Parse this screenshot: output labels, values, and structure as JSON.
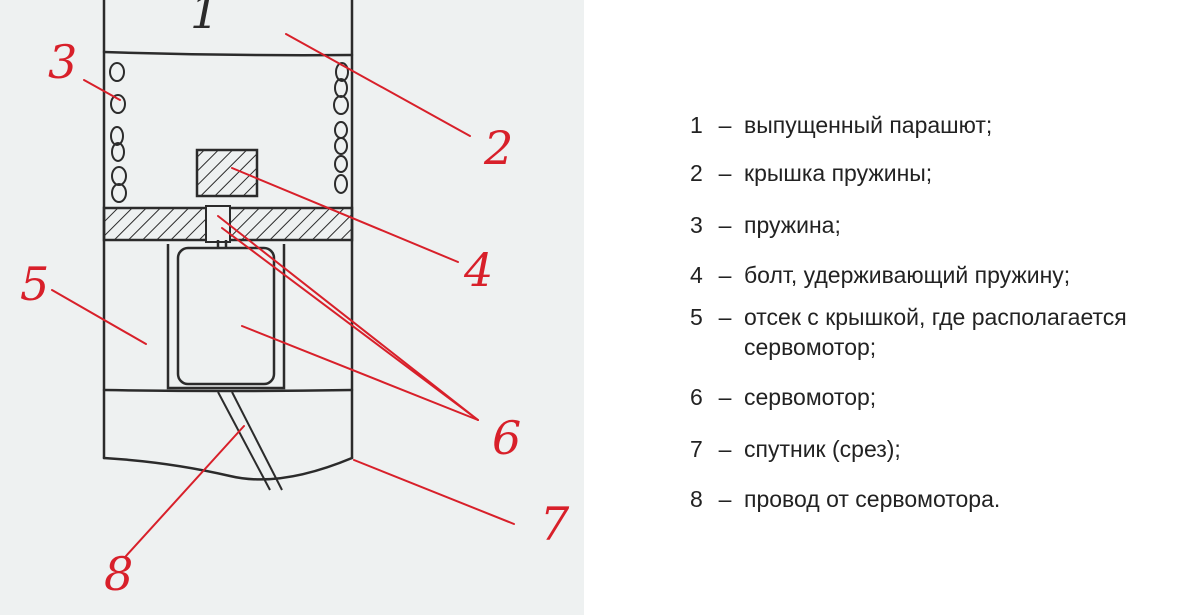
{
  "diagram": {
    "callouts": [
      {
        "id": "1",
        "label": "1"
      },
      {
        "id": "2",
        "label": "2"
      },
      {
        "id": "3",
        "label": "3"
      },
      {
        "id": "4",
        "label": "4"
      },
      {
        "id": "5",
        "label": "5"
      },
      {
        "id": "6",
        "label": "6"
      },
      {
        "id": "7",
        "label": "7"
      },
      {
        "id": "8",
        "label": "8"
      }
    ],
    "colors": {
      "ink": "#2b2b2b",
      "callout": "#d8202a",
      "paper": "#eef1f1"
    }
  },
  "legend": {
    "dash": "–",
    "items": [
      {
        "num": "1",
        "text": "выпущенный парашют;"
      },
      {
        "num": "2",
        "text": "крышка пружины;"
      },
      {
        "num": "3",
        "text": "пружина;"
      },
      {
        "num": "4",
        "text": "болт, удерживающий пружину;"
      },
      {
        "num": "5",
        "text": "отсек с крышкой, где располагается сервомотор;"
      },
      {
        "num": "6",
        "text": "сервомотор;"
      },
      {
        "num": "7",
        "text": "спутник (срез);"
      },
      {
        "num": "8",
        "text": "провод от сервомотора."
      }
    ]
  }
}
